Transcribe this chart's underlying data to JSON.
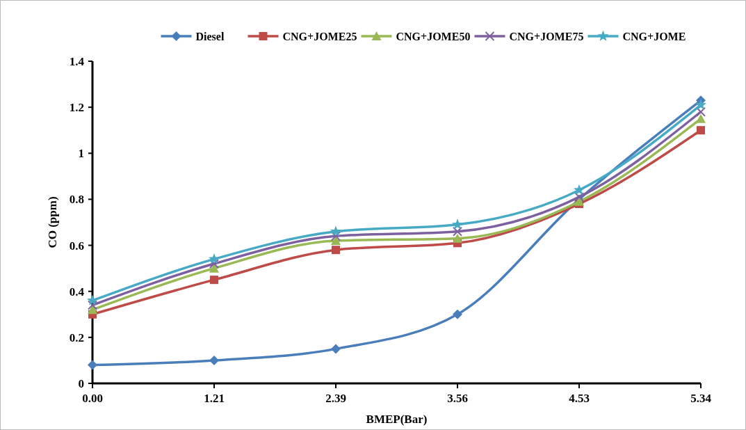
{
  "chart_data": {
    "type": "line",
    "xlabel": "BMEP(Bar)",
    "ylabel": "CO (ppm)",
    "categories": [
      "0.00",
      "1.21",
      "2.39",
      "3.56",
      "4.53",
      "5.34"
    ],
    "series": [
      {
        "name": "Diesel",
        "color": "#4a7ebb",
        "marker": "diamond",
        "values": [
          0.08,
          0.1,
          0.15,
          0.3,
          0.8,
          1.23
        ]
      },
      {
        "name": "CNG+JOME25",
        "color": "#be4b48",
        "marker": "square",
        "values": [
          0.3,
          0.45,
          0.58,
          0.61,
          0.78,
          1.1
        ]
      },
      {
        "name": "CNG+JOME50",
        "color": "#98b954",
        "marker": "triangle",
        "values": [
          0.32,
          0.5,
          0.62,
          0.63,
          0.79,
          1.15
        ]
      },
      {
        "name": "CNG+JOME75",
        "color": "#7d60a0",
        "marker": "cross",
        "values": [
          0.34,
          0.52,
          0.64,
          0.66,
          0.81,
          1.18
        ]
      },
      {
        "name": "CNG+JOME",
        "color": "#46aac5",
        "marker": "star",
        "values": [
          0.36,
          0.54,
          0.66,
          0.69,
          0.84,
          1.21
        ]
      }
    ],
    "ylim": [
      0,
      1.4
    ],
    "yticks": [
      0,
      0.2,
      0.4,
      0.6,
      0.8,
      1,
      1.2,
      1.4
    ],
    "legend": "top",
    "grid": false,
    "line_style": "solid"
  }
}
